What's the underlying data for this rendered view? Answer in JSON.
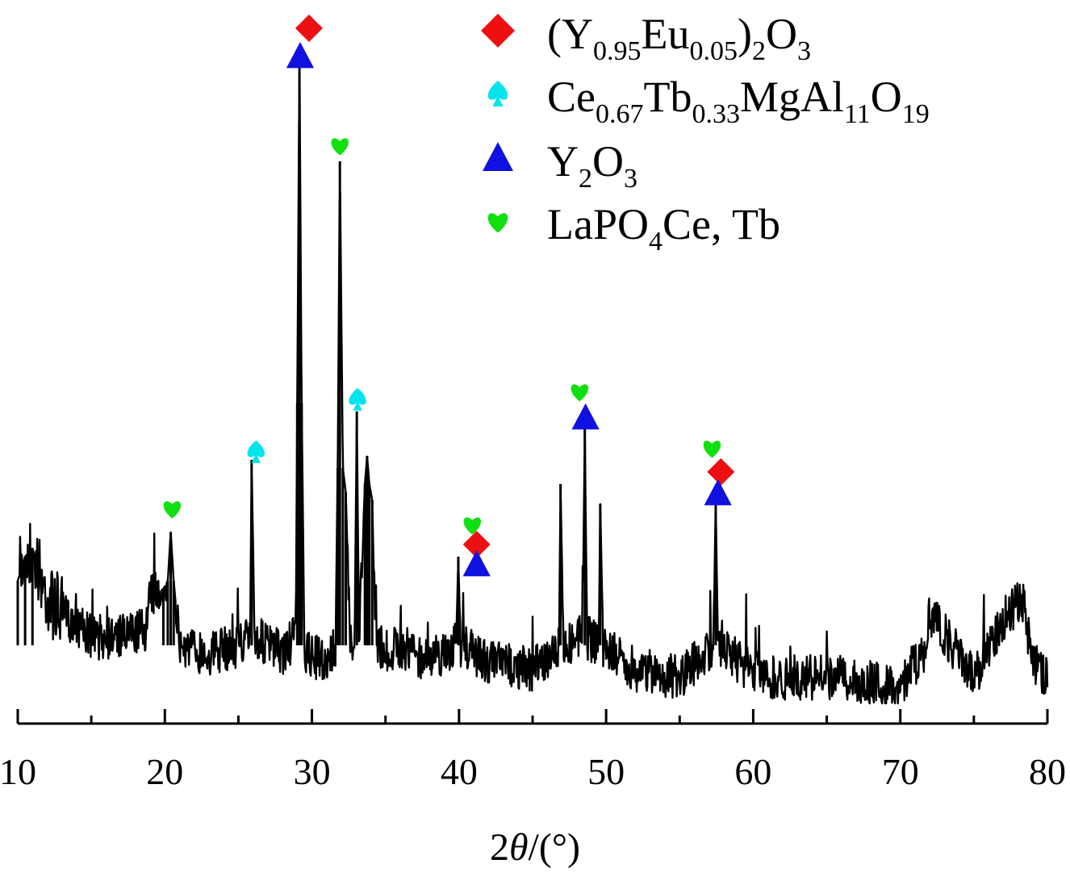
{
  "chart_data": {
    "type": "line",
    "title": "",
    "xlabel_prefix": "2",
    "xlabel_theta": "θ",
    "xlabel_suffix": "/(°)",
    "ylabel": "",
    "xlim": [
      10,
      80
    ],
    "x_ticks": [
      "10",
      "20",
      "30",
      "40",
      "50",
      "60",
      "70",
      "80"
    ],
    "x_tick_values": [
      10,
      20,
      30,
      40,
      50,
      60,
      70,
      80
    ],
    "x_minor_tick_values": [
      15,
      25,
      35,
      45,
      55,
      65,
      75
    ],
    "y_axis_visible": false,
    "grid": false,
    "legend_position": "top-right",
    "series": [
      {
        "name": "",
        "description_type": "XRD pattern",
        "x": [
          10,
          10.5,
          11,
          12,
          13,
          15,
          17,
          18.7,
          19,
          19.9,
          20.2,
          20.4,
          20.6,
          21,
          23,
          25,
          25.8,
          25.9,
          26.1,
          27,
          28,
          28.9,
          29.0,
          29.15,
          29.3,
          29.5,
          31,
          31.6,
          31.75,
          31.9,
          32.1,
          32.3,
          32.6,
          32.9,
          33.05,
          33.2,
          33.6,
          33.75,
          33.9,
          34.1,
          34.3,
          35,
          36,
          38,
          39.8,
          39.95,
          40.1,
          42,
          45,
          46.8,
          46.9,
          47.1,
          48.4,
          48.55,
          48.7,
          49.5,
          49.6,
          49.8,
          51,
          52,
          55,
          57.3,
          57.45,
          57.6,
          59,
          60,
          62,
          65,
          70,
          71.8,
          72,
          75,
          77.3,
          78.3,
          79,
          80
        ],
        "y": [
          720,
          690,
          680,
          740,
          760,
          790,
          790,
          780,
          740,
          730,
          720,
          660,
          720,
          800,
          810,
          800,
          790,
          570,
          790,
          800,
          810,
          790,
          500,
          70,
          500,
          810,
          820,
          800,
          580,
          200,
          580,
          610,
          800,
          790,
          510,
          790,
          600,
          565,
          600,
          620,
          790,
          810,
          800,
          820,
          800,
          690,
          800,
          820,
          830,
          800,
          600,
          800,
          790,
          530,
          790,
          800,
          625,
          800,
          820,
          830,
          840,
          800,
          620,
          800,
          820,
          835,
          840,
          840,
          850,
          800,
          760,
          840,
          760,
          745,
          820,
          840
        ]
      }
    ],
    "markers": [
      {
        "x": 20.5,
        "symbol": "heart",
        "color": "#10e010",
        "y": 630
      },
      {
        "x": 26.2,
        "symbol": "spade",
        "color": "#00e5ee",
        "y": 560
      },
      {
        "x": 29.2,
        "symbol": "triangle",
        "color": "#1010e0",
        "y": 70
      },
      {
        "x": 29.8,
        "symbol": "diamond",
        "color": "#ee1010",
        "y": 35
      },
      {
        "x": 31.9,
        "symbol": "heart",
        "color": "#10e010",
        "y": 180
      },
      {
        "x": 33.1,
        "symbol": "spade",
        "color": "#00e5ee",
        "y": 495
      },
      {
        "x": 40.9,
        "symbol": "heart",
        "color": "#10e010",
        "y": 650
      },
      {
        "x": 41.2,
        "symbol": "diamond",
        "color": "#ee1010",
        "y": 675
      },
      {
        "x": 41.2,
        "symbol": "triangle",
        "color": "#1010e0",
        "y": 700
      },
      {
        "x": 48.2,
        "symbol": "heart",
        "color": "#10e010",
        "y": 485
      },
      {
        "x": 48.6,
        "symbol": "triangle",
        "color": "#1010e0",
        "y": 518
      },
      {
        "x": 57.2,
        "symbol": "heart",
        "color": "#10e010",
        "y": 555
      },
      {
        "x": 57.8,
        "symbol": "diamond",
        "color": "#ee1010",
        "y": 585
      },
      {
        "x": 57.6,
        "symbol": "triangle",
        "color": "#1010e0",
        "y": 612
      }
    ],
    "legend": [
      {
        "symbol": "diamond",
        "color": "#ee1010",
        "parts": [
          "(Y",
          "0.95",
          "Eu",
          "0.05",
          ")",
          "2",
          "O",
          "3"
        ]
      },
      {
        "symbol": "spade",
        "color": "#00e5ee",
        "parts": [
          "Ce",
          "0.67",
          "Tb",
          "0.33",
          "MgAl",
          "11",
          "O",
          "19"
        ]
      },
      {
        "symbol": "triangle",
        "color": "#1010e0",
        "parts": [
          "Y",
          "2",
          "O",
          "3"
        ]
      },
      {
        "symbol": "heart",
        "color": "#10e010",
        "parts": [
          "LaPO",
          "4",
          "Ce, Tb"
        ]
      }
    ]
  }
}
